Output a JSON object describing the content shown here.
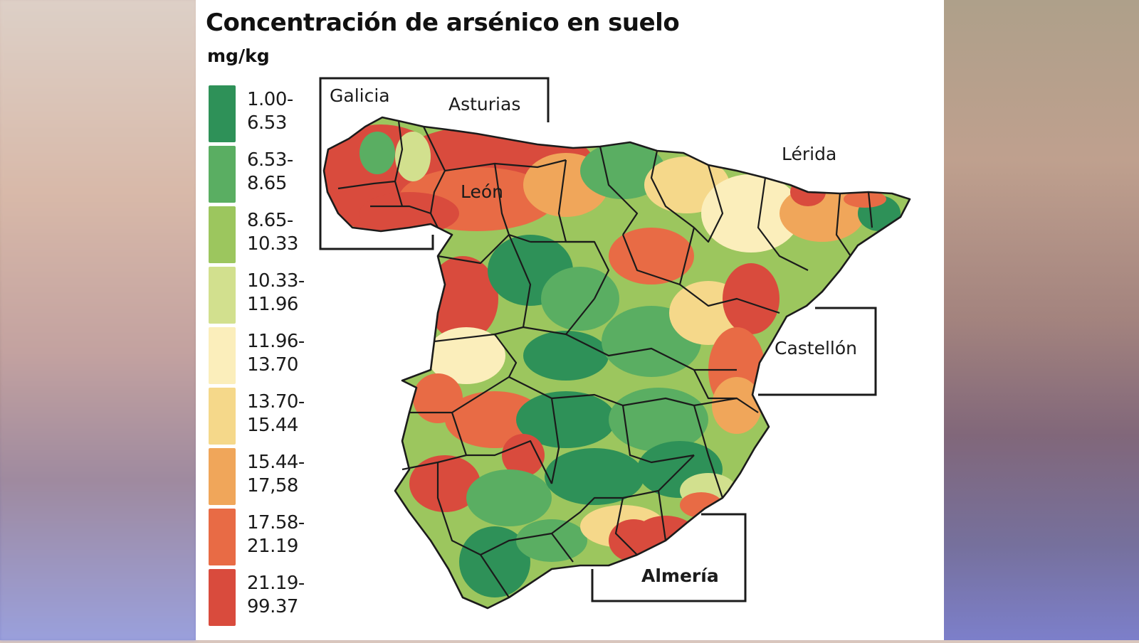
{
  "header": {
    "title": "Concentración de arsénico en suelo",
    "unit": "mg/kg"
  },
  "legend": {
    "items": [
      {
        "from": "1.00-",
        "to": "6.53",
        "color": "#2e9158"
      },
      {
        "from": "6.53-",
        "to": "8.65",
        "color": "#5aae62"
      },
      {
        "from": "8.65-",
        "to": "10.33",
        "color": "#9cc65e"
      },
      {
        "from": "10.33-",
        "to": "11.96",
        "color": "#d2e08e"
      },
      {
        "from": "11.96-",
        "to": "13.70",
        "color": "#fbeebb"
      },
      {
        "from": "13.70-",
        "to": "15.44",
        "color": "#f5d88a"
      },
      {
        "from": "15.44-",
        "to": "17,58",
        "color": "#f0a65a"
      },
      {
        "from": "17.58-",
        "to": "21.19",
        "color": "#e86b45"
      },
      {
        "from": "21.19-",
        "to": "99.37",
        "color": "#d94b3d"
      }
    ]
  },
  "map": {
    "labels": {
      "galicia": "Galicia",
      "asturias": "Asturias",
      "leon": "León",
      "lerida": "Lérida",
      "castellon": "Castellón",
      "almeria": "Almería"
    }
  },
  "chart_data": {
    "type": "choropleth",
    "title": "Concentración de arsénico en suelo",
    "unit": "mg/kg",
    "region": "Spain (peninsular)",
    "classes": [
      {
        "range": [
          1.0,
          6.53
        ],
        "color": "#2e9158"
      },
      {
        "range": [
          6.53,
          8.65
        ],
        "color": "#5aae62"
      },
      {
        "range": [
          8.65,
          10.33
        ],
        "color": "#9cc65e"
      },
      {
        "range": [
          10.33,
          11.96
        ],
        "color": "#d2e08e"
      },
      {
        "range": [
          11.96,
          13.7
        ],
        "color": "#fbeebb"
      },
      {
        "range": [
          13.7,
          15.44
        ],
        "color": "#f5d88a"
      },
      {
        "range": [
          15.44,
          17.58
        ],
        "color": "#f0a65a"
      },
      {
        "range": [
          17.58,
          21.19
        ],
        "color": "#e86b45"
      },
      {
        "range": [
          21.19,
          99.37
        ],
        "color": "#d94b3d"
      }
    ],
    "annotations": [
      "Galicia",
      "Asturias",
      "León",
      "Lérida",
      "Castellón",
      "Almería"
    ],
    "highlighted_high_areas": [
      "Galicia",
      "Asturias",
      "León",
      "Castellón",
      "Almería"
    ]
  }
}
